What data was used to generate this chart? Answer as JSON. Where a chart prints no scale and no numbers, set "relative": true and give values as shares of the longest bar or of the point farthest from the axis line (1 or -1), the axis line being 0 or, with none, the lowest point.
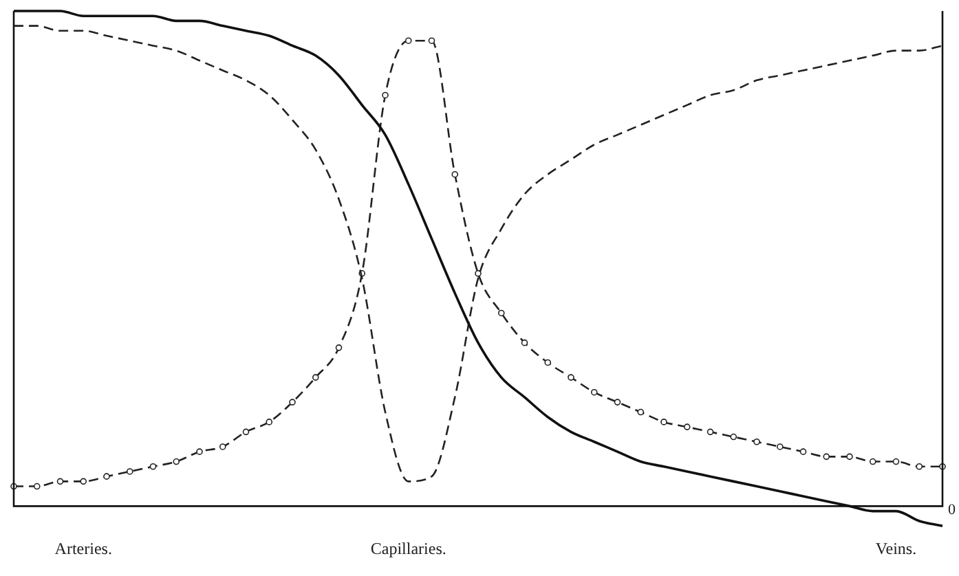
{
  "chart_data": {
    "type": "line",
    "relative": true,
    "categories": [
      null,
      null,
      null,
      "Arteries.",
      null,
      null,
      null,
      null,
      null,
      null,
      null,
      null,
      null,
      null,
      null,
      null,
      null,
      "Capillaries.",
      null,
      null,
      null,
      null,
      null,
      null,
      null,
      null,
      null,
      null,
      null,
      null,
      null,
      null,
      null,
      null,
      null,
      null,
      null,
      null,
      "Veins.",
      null,
      null
    ],
    "annotations": [
      "0"
    ],
    "legend": false,
    "series": [
      {
        "color": "#111111",
        "line_style": "solid",
        "marker": "none",
        "values": [
          1,
          1,
          1,
          0.99,
          0.99,
          0.99,
          0.99,
          0.98,
          0.98,
          0.97,
          0.96,
          0.95,
          0.93,
          0.91,
          0.87,
          0.81,
          0.75,
          0.65,
          0.54,
          0.43,
          0.33,
          0.26,
          0.22,
          0.18,
          0.15,
          0.13,
          0.11,
          0.09,
          0.08,
          0.07,
          0.06,
          0.05,
          0.04,
          0.03,
          0.02,
          0.01,
          0,
          -0.01,
          -0.01,
          -0.03,
          -0.04
        ]
      },
      {
        "color": "#222222",
        "line_style": "dashed",
        "marker": "none",
        "values": [
          0.97,
          0.97,
          0.96,
          0.96,
          0.95,
          0.94,
          0.93,
          0.92,
          0.9,
          0.88,
          0.86,
          0.83,
          0.78,
          0.72,
          0.62,
          0.46,
          0.19,
          0.05,
          0.06,
          0.22,
          0.46,
          0.56,
          0.63,
          0.67,
          0.7,
          0.73,
          0.75,
          0.77,
          0.79,
          0.81,
          0.83,
          0.84,
          0.86,
          0.87,
          0.88,
          0.89,
          0.9,
          0.91,
          0.92,
          0.92,
          0.93
        ]
      },
      {
        "color": "#222222",
        "line_style": "dashed",
        "marker": "circle",
        "values": [
          0.04,
          0.04,
          0.05,
          0.05,
          0.06,
          0.07,
          0.08,
          0.09,
          0.11,
          0.12,
          0.15,
          0.17,
          0.21,
          0.26,
          0.32,
          0.47,
          0.83,
          0.94,
          0.94,
          0.67,
          0.47,
          0.39,
          0.33,
          0.29,
          0.26,
          0.23,
          0.21,
          0.19,
          0.17,
          0.16,
          0.15,
          0.14,
          0.13,
          0.12,
          0.11,
          0.1,
          0.1,
          0.09,
          0.09,
          0.08,
          0.08
        ]
      }
    ]
  }
}
